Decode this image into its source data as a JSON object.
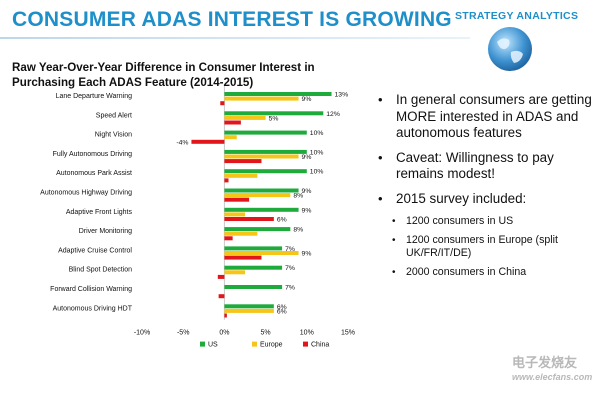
{
  "slide": {
    "title": "CONSUMER ADAS INTEREST IS GROWING",
    "brand": "STRATEGY ANALYTICS",
    "title_color": "#1e8fc9"
  },
  "bullets": [
    {
      "text": "In general consumers are getting MORE interested in ADAS and autonomous features",
      "sub": []
    },
    {
      "text": "Caveat: Willingness to pay remains modest!",
      "sub": []
    },
    {
      "text": "2015 survey included:",
      "sub": [
        "1200 consumers in US",
        "1200 consumers in Europe (split UK/FR/IT/DE)",
        "2000 consumers in China"
      ]
    }
  ],
  "watermark": {
    "text": "电子发烧友",
    "url": "www.elecfans.com"
  },
  "chart_data": {
    "type": "bar",
    "orientation": "horizontal",
    "title": "Raw Year-Over-Year Difference in Consumer Interest in Purchasing Each ADAS Feature (2014-2015)",
    "categories": [
      "Lane Departure Warning",
      "Speed Alert",
      "Night Vision",
      "Fully Autonomous Driving",
      "Autonomous Park Assist",
      "Autonomous Highway Driving",
      "Adaptive Front Lights",
      "Driver Monitoring",
      "Adaptive Cruise Control",
      "Blind Spot Detection",
      "Forward Collision Warning",
      "Autonomous Driving HDT"
    ],
    "series": [
      {
        "name": "US",
        "color": "#1faa3c",
        "values": [
          13,
          12,
          10,
          10,
          10,
          9,
          9,
          8,
          7,
          7,
          7,
          6
        ]
      },
      {
        "name": "Europe",
        "color": "#f5c518",
        "values": [
          9,
          5,
          1.5,
          9,
          4,
          8,
          2.5,
          4,
          9,
          2.5,
          0,
          6
        ]
      },
      {
        "name": "China",
        "color": "#e0161c",
        "values": [
          -0.5,
          2,
          -4,
          4.5,
          0.5,
          3,
          6,
          1,
          4.5,
          -0.8,
          -0.7,
          0.3
        ]
      }
    ],
    "data_labels": [
      {
        "category": 0,
        "series": 0,
        "text": "13%"
      },
      {
        "category": 0,
        "series": 1,
        "text": "9%"
      },
      {
        "category": 1,
        "series": 0,
        "text": "12%"
      },
      {
        "category": 1,
        "series": 1,
        "text": "5%"
      },
      {
        "category": 2,
        "series": 0,
        "text": "10%"
      },
      {
        "category": 2,
        "series": 2,
        "text": "-4%"
      },
      {
        "category": 3,
        "series": 0,
        "text": "10%"
      },
      {
        "category": 3,
        "series": 1,
        "text": "9%"
      },
      {
        "category": 4,
        "series": 0,
        "text": "10%"
      },
      {
        "category": 5,
        "series": 0,
        "text": "9%"
      },
      {
        "category": 5,
        "series": 1,
        "text": "8%"
      },
      {
        "category": 6,
        "series": 0,
        "text": "9%"
      },
      {
        "category": 6,
        "series": 2,
        "text": "6%"
      },
      {
        "category": 7,
        "series": 0,
        "text": "8%"
      },
      {
        "category": 8,
        "series": 0,
        "text": "7%"
      },
      {
        "category": 8,
        "series": 1,
        "text": "9%"
      },
      {
        "category": 9,
        "series": 0,
        "text": "7%"
      },
      {
        "category": 10,
        "series": 0,
        "text": "7%"
      },
      {
        "category": 11,
        "series": 0,
        "text": "6%"
      },
      {
        "category": 11,
        "series": 1,
        "text": "6%"
      }
    ],
    "xlim": [
      -10,
      15
    ],
    "xticks": [
      -10,
      -5,
      0,
      5,
      10,
      15
    ],
    "xtick_labels": [
      "-10%",
      "-5%",
      "0%",
      "5%",
      "10%",
      "15%"
    ],
    "grid": false,
    "legend_position": "bottom"
  }
}
